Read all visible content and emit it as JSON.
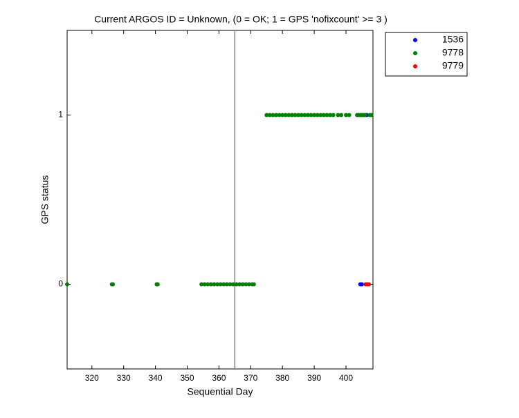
{
  "chart_data": {
    "type": "scatter",
    "title": "Current ARGOS ID = Unknown, (0 = OK; 1 = GPS 'nofixcount' >= 3 )",
    "x_label": "Sequential Day",
    "y_label": "GPS status",
    "xlim": [
      312.2,
      408.5
    ],
    "ylim": [
      -0.5,
      1.5
    ],
    "xticks": [
      320,
      330,
      340,
      350,
      360,
      370,
      380,
      390,
      400
    ],
    "yticks": [
      0,
      1
    ],
    "vline": 365,
    "vline_color": "#808080",
    "legend": "outside-top-right",
    "series": [
      {
        "name": "1536",
        "color": "#0000ff",
        "x": [
          404.5,
          405,
          406.5
        ],
        "y": [
          0,
          0,
          1
        ]
      },
      {
        "name": "9778",
        "color": "#008000",
        "x": [
          312.2,
          326.3,
          326.6,
          340.4,
          340.7,
          354.5,
          355.5,
          356.5,
          357.5,
          358.5,
          359.5,
          360.5,
          361.5,
          362.5,
          363.5,
          364.5,
          365.5,
          366.5,
          367.5,
          368.5,
          369.5,
          370.5,
          371,
          375,
          376,
          377,
          378,
          379,
          380,
          381,
          382,
          383,
          384,
          385,
          386,
          387,
          388,
          389,
          390,
          391,
          392,
          393,
          394,
          395,
          396,
          397.5,
          398.5,
          400,
          401,
          403.5,
          404,
          404.5,
          405,
          405.5,
          406,
          407.5,
          408
        ],
        "y": [
          0,
          0,
          0,
          0,
          0,
          0,
          0,
          0,
          0,
          0,
          0,
          0,
          0,
          0,
          0,
          0,
          0,
          0,
          0,
          0,
          0,
          0,
          0,
          1,
          1,
          1,
          1,
          1,
          1,
          1,
          1,
          1,
          1,
          1,
          1,
          1,
          1,
          1,
          1,
          1,
          1,
          1,
          1,
          1,
          1,
          1,
          1,
          1,
          1,
          1,
          1,
          1,
          1,
          1,
          1,
          1,
          1
        ]
      },
      {
        "name": "9779",
        "color": "#ff0000",
        "x": [
          406.2,
          406.7,
          407.2
        ],
        "y": [
          0,
          0,
          0
        ]
      }
    ]
  }
}
